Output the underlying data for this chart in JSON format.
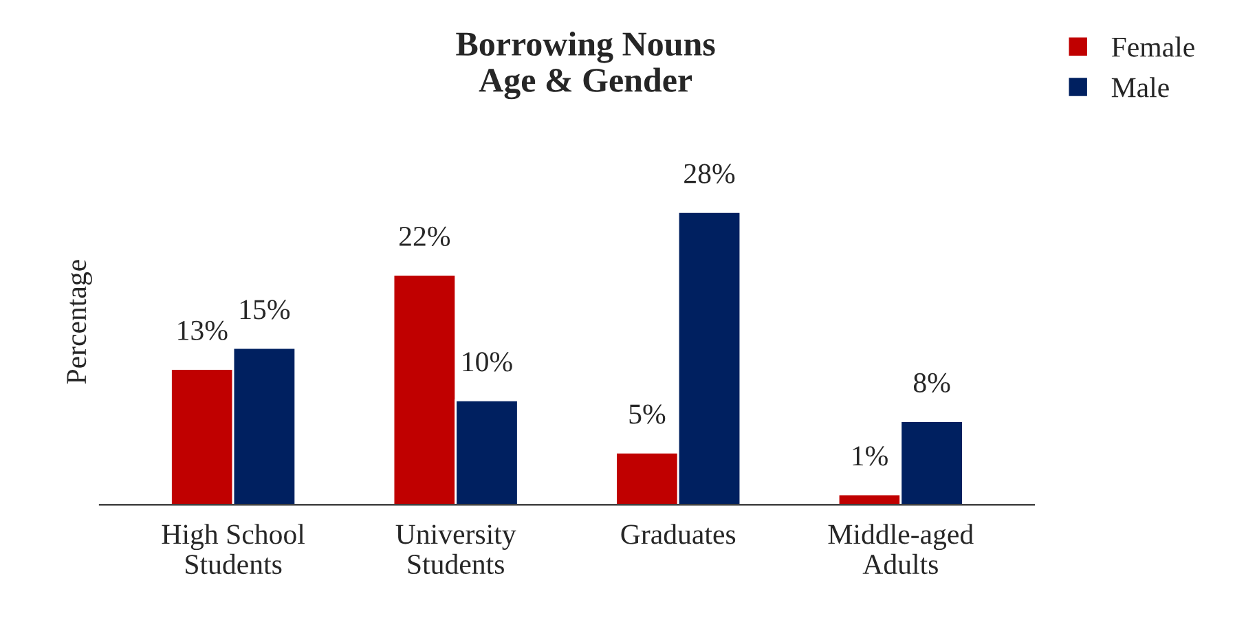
{
  "chart_data": {
    "type": "bar",
    "title": "Borrowing Nouns\nAge & Gender",
    "ylabel": "Percentage",
    "categories": [
      "High School\nStudents",
      "University\nStudents",
      "Graduates",
      "Middle-aged\nAdults"
    ],
    "series": [
      {
        "name": "Female",
        "color": "#c00000",
        "values": [
          13,
          22,
          5,
          1
        ],
        "value_labels": [
          "13%",
          "22%",
          "5%",
          "1%"
        ]
      },
      {
        "name": "Male",
        "color": "#002060",
        "values": [
          15,
          10,
          28,
          8
        ],
        "value_labels": [
          "15%",
          "10%",
          "28%",
          "8%"
        ]
      }
    ],
    "tick_labels": "x",
    "legend": "top right",
    "grid": false
  }
}
